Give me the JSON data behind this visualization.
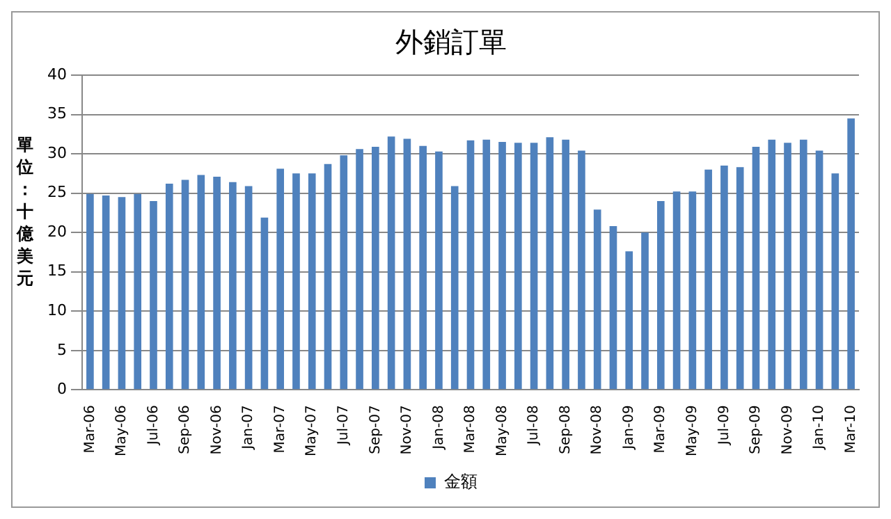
{
  "chart_data": {
    "type": "bar",
    "title": "外銷訂單",
    "ylabel": "單位：十億美元",
    "categories": [
      "Mar-06",
      null,
      "May-06",
      null,
      "Jul-06",
      null,
      "Sep-06",
      null,
      "Nov-06",
      null,
      "Jan-07",
      null,
      "Mar-07",
      null,
      "May-07",
      null,
      "Jul-07",
      null,
      "Sep-07",
      null,
      "Nov-07",
      null,
      "Jan-08",
      null,
      "Mar-08",
      null,
      "May-08",
      null,
      "Jul-08",
      null,
      "Sep-08",
      null,
      "Nov-08",
      null,
      "Jan-09",
      null,
      "Mar-09",
      null,
      "May-09",
      null,
      "Jul-09",
      null,
      "Sep-09",
      null,
      "Nov-09",
      null,
      "Jan-10",
      null,
      "Mar-10"
    ],
    "series": [
      {
        "name": "金額",
        "color": "#4f81bd",
        "values": [
          24.9,
          24.7,
          24.5,
          24.9,
          24.0,
          26.2,
          26.7,
          27.3,
          27.1,
          26.4,
          25.9,
          21.9,
          28.1,
          27.5,
          27.5,
          28.7,
          29.8,
          30.6,
          30.9,
          32.2,
          31.9,
          31.0,
          30.3,
          25.9,
          31.7,
          31.8,
          31.5,
          31.4,
          31.4,
          32.1,
          31.8,
          30.4,
          22.9,
          20.8,
          17.6,
          20.0,
          24.0,
          25.2,
          25.2,
          28.0,
          28.5,
          28.3,
          30.9,
          31.8,
          31.4,
          31.8,
          30.4,
          27.5,
          34.5
        ]
      }
    ],
    "ylim": [
      0,
      40
    ],
    "yticks": [
      0,
      5,
      10,
      15,
      20,
      25,
      30,
      35,
      40
    ],
    "grid": "y",
    "legend": "bottom"
  }
}
